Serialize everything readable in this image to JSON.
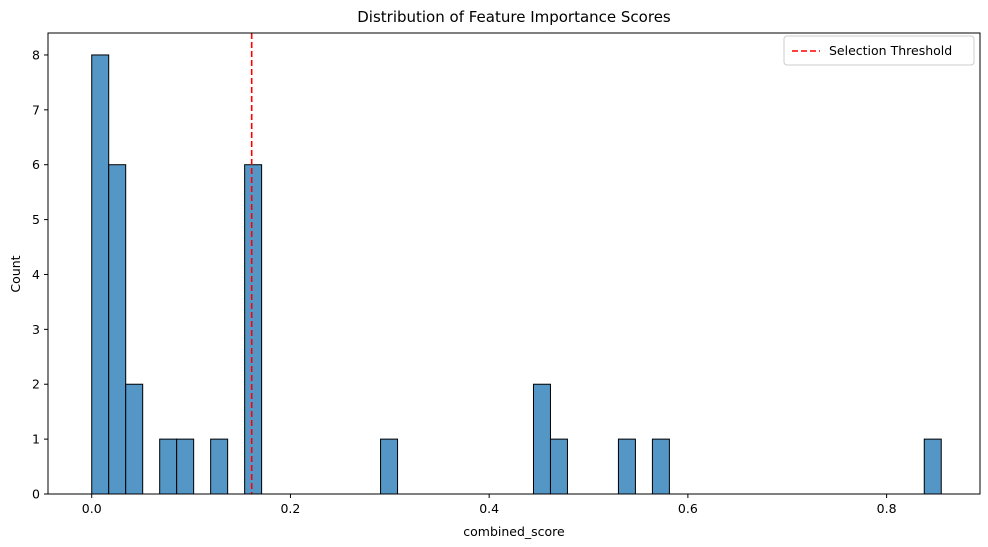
{
  "chart_data": {
    "type": "bar",
    "title": "Distribution of Feature Importance Scores",
    "xlabel": "combined_score",
    "ylabel": "Count",
    "xlim": [
      -0.044,
      0.894
    ],
    "ylim": [
      0,
      8.4
    ],
    "bin_width": 0.0171,
    "bins": [
      {
        "start": 0.0,
        "count": 8
      },
      {
        "start": 0.0171,
        "count": 6
      },
      {
        "start": 0.0342,
        "count": 2
      },
      {
        "start": 0.0684,
        "count": 1
      },
      {
        "start": 0.0855,
        "count": 1
      },
      {
        "start": 0.1197,
        "count": 1
      },
      {
        "start": 0.1539,
        "count": 6
      },
      {
        "start": 0.2907,
        "count": 1
      },
      {
        "start": 0.4446,
        "count": 2
      },
      {
        "start": 0.4617,
        "count": 1
      },
      {
        "start": 0.5301,
        "count": 1
      },
      {
        "start": 0.5643,
        "count": 1
      },
      {
        "start": 0.8379,
        "count": 1
      }
    ],
    "x_ticks": [
      {
        "value": 0.0,
        "label": "0.0"
      },
      {
        "value": 0.2,
        "label": "0.2"
      },
      {
        "value": 0.4,
        "label": "0.4"
      },
      {
        "value": 0.6,
        "label": "0.6"
      },
      {
        "value": 0.8,
        "label": "0.8"
      }
    ],
    "y_ticks": [
      {
        "value": 0,
        "label": "0"
      },
      {
        "value": 1,
        "label": "1"
      },
      {
        "value": 2,
        "label": "2"
      },
      {
        "value": 3,
        "label": "3"
      },
      {
        "value": 4,
        "label": "4"
      },
      {
        "value": 5,
        "label": "5"
      },
      {
        "value": 6,
        "label": "6"
      },
      {
        "value": 7,
        "label": "7"
      },
      {
        "value": 8,
        "label": "8"
      }
    ],
    "threshold": {
      "value": 0.161,
      "label": "Selection Threshold",
      "color": "#ff0000"
    },
    "bar_color": "#5496c6",
    "bar_edge_color": "#000000",
    "legend_position": "top-right",
    "grid": false
  }
}
